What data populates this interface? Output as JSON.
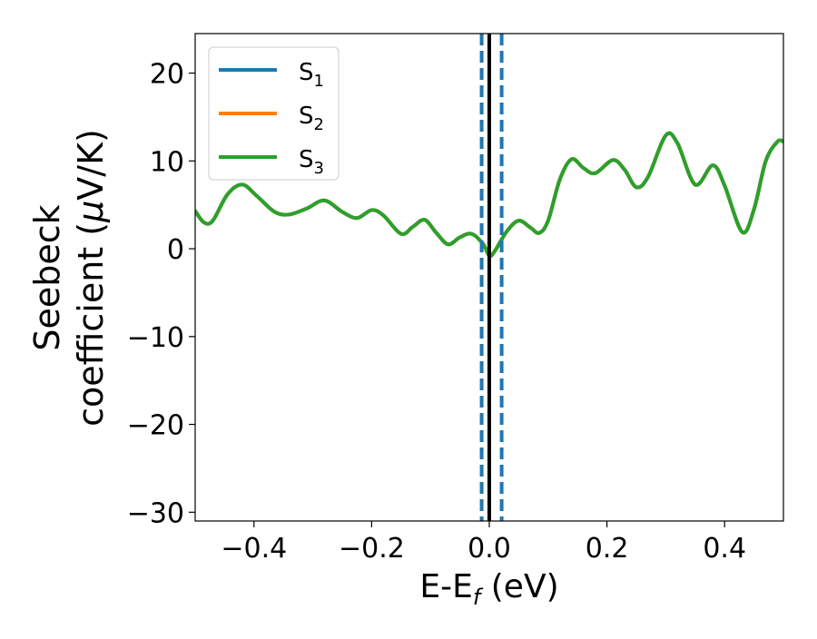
{
  "chart_data": {
    "type": "line",
    "xlabel": "E-E",
    "xlabel_sub": "f",
    "xlabel_unit": " (eV)",
    "ylabel_line1": "Seebeck",
    "ylabel_line2_prefix": "coefficient  (",
    "ylabel_line2_mu": "μ",
    "ylabel_line2_suffix": "V/K)",
    "xlim": [
      -0.5,
      0.5
    ],
    "ylim": [
      -31,
      24.5
    ],
    "xticks": [
      -0.4,
      -0.2,
      0.0,
      0.2,
      0.4
    ],
    "xtick_labels": [
      "−0.4",
      "−0.2",
      "0.0",
      "0.2",
      "0.4"
    ],
    "yticks": [
      20,
      10,
      0,
      -10,
      -20,
      -30
    ],
    "ytick_labels": [
      "20",
      "10",
      "0",
      "−10",
      "−20",
      "−30"
    ],
    "legend": {
      "placement": "top-left",
      "entries": [
        {
          "base": "S",
          "sub": "1",
          "color": "#1f77b4"
        },
        {
          "base": "S",
          "sub": "2",
          "color": "#ff7f0e"
        },
        {
          "base": "S",
          "sub": "3",
          "color": "#2ca02c"
        }
      ]
    },
    "vertical_lines": [
      {
        "x": -0.013,
        "style": "dashed",
        "color": "#1f77b4"
      },
      {
        "x": 0.0,
        "style": "solid",
        "color": "#000000"
      },
      {
        "x": 0.021,
        "style": "dashed",
        "color": "#1f77b4"
      }
    ],
    "series_x": [
      -0.5,
      -0.485,
      -0.47,
      -0.445,
      -0.42,
      -0.395,
      -0.365,
      -0.34,
      -0.31,
      -0.28,
      -0.25,
      -0.225,
      -0.2,
      -0.18,
      -0.15,
      -0.13,
      -0.11,
      -0.09,
      -0.07,
      -0.05,
      -0.03,
      -0.01,
      0.0,
      0.01,
      0.03,
      0.05,
      0.07,
      0.085,
      0.1,
      0.12,
      0.14,
      0.16,
      0.18,
      0.21,
      0.23,
      0.25,
      0.27,
      0.3,
      0.32,
      0.35,
      0.38,
      0.4,
      0.43,
      0.45,
      0.47,
      0.49,
      0.5
    ],
    "series": [
      {
        "name": "S1",
        "color": "#1f77b4",
        "values": [
          4.3,
          3.0,
          3.2,
          6.2,
          7.3,
          6.0,
          4.2,
          3.9,
          4.6,
          5.5,
          4.2,
          3.5,
          4.4,
          3.8,
          1.7,
          2.5,
          3.3,
          1.8,
          0.5,
          1.3,
          1.7,
          0.5,
          -0.8,
          -0.2,
          2.0,
          3.2,
          2.4,
          1.8,
          3.2,
          7.9,
          10.2,
          9.2,
          8.6,
          10.1,
          9.0,
          7.0,
          8.2,
          12.9,
          12.0,
          7.3,
          9.5,
          7.2,
          1.9,
          4.5,
          10.0,
          12.2,
          12.2
        ]
      },
      {
        "name": "S2",
        "color": "#ff7f0e",
        "values": [
          4.3,
          3.0,
          3.2,
          6.2,
          7.3,
          6.0,
          4.2,
          3.9,
          4.6,
          5.5,
          4.2,
          3.5,
          4.4,
          3.8,
          1.7,
          2.5,
          3.3,
          1.8,
          0.5,
          1.3,
          1.7,
          0.5,
          -0.8,
          -0.2,
          2.0,
          3.2,
          2.4,
          1.8,
          3.2,
          7.9,
          10.2,
          9.2,
          8.6,
          10.1,
          9.0,
          7.0,
          8.2,
          12.9,
          12.0,
          7.3,
          9.5,
          7.2,
          1.9,
          4.5,
          10.0,
          12.2,
          12.2
        ]
      },
      {
        "name": "S3",
        "color": "#2ca02c",
        "values": [
          4.3,
          3.0,
          3.2,
          6.2,
          7.3,
          6.0,
          4.2,
          3.9,
          4.6,
          5.5,
          4.2,
          3.5,
          4.4,
          3.8,
          1.7,
          2.5,
          3.3,
          1.8,
          0.5,
          1.3,
          1.7,
          0.5,
          -0.8,
          -0.2,
          2.0,
          3.2,
          2.4,
          1.8,
          3.2,
          7.9,
          10.2,
          9.2,
          8.6,
          10.1,
          9.0,
          7.0,
          8.2,
          12.9,
          12.0,
          7.3,
          9.5,
          7.2,
          1.9,
          4.5,
          10.0,
          12.2,
          12.2
        ]
      }
    ]
  }
}
